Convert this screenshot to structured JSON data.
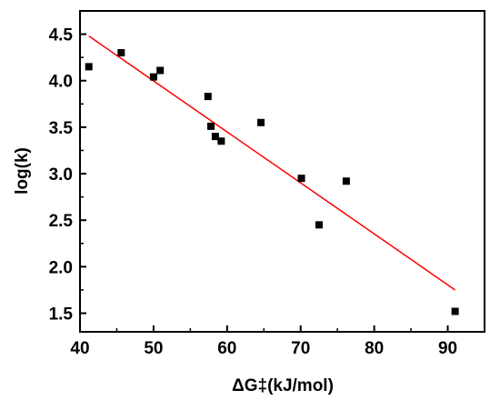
{
  "chart_data": {
    "type": "scatter",
    "xlabel": "ΔG‡(kJ/mol)",
    "ylabel": "log(k)",
    "xlim": [
      40,
      95
    ],
    "ylim": [
      1.3,
      4.75
    ],
    "x_ticks": [
      40,
      50,
      60,
      70,
      80,
      90
    ],
    "y_ticks": [
      1.5,
      2.0,
      2.5,
      3.0,
      3.5,
      4.0,
      4.5
    ],
    "x_tick_labels": [
      "40",
      "50",
      "60",
      "70",
      "80",
      "90"
    ],
    "y_tick_labels": [
      "1.5",
      "2.0",
      "2.5",
      "3.0",
      "3.5",
      "4.0",
      "4.5"
    ],
    "grid": false,
    "series": [
      {
        "type": "scatter",
        "marker": "square",
        "color": "#000000",
        "points": [
          {
            "x": 41.2,
            "y": 4.15
          },
          {
            "x": 45.6,
            "y": 4.3
          },
          {
            "x": 50.0,
            "y": 4.04
          },
          {
            "x": 50.9,
            "y": 4.11
          },
          {
            "x": 57.4,
            "y": 3.83
          },
          {
            "x": 57.8,
            "y": 3.51
          },
          {
            "x": 58.4,
            "y": 3.4
          },
          {
            "x": 59.2,
            "y": 3.35
          },
          {
            "x": 64.6,
            "y": 3.55
          },
          {
            "x": 70.1,
            "y": 2.95
          },
          {
            "x": 72.5,
            "y": 2.45
          },
          {
            "x": 76.2,
            "y": 2.92
          },
          {
            "x": 91.0,
            "y": 1.52
          }
        ]
      },
      {
        "type": "line",
        "color": "#ff0000",
        "x": [
          41.2,
          91.0
        ],
        "y": [
          4.48,
          1.75
        ]
      }
    ]
  }
}
